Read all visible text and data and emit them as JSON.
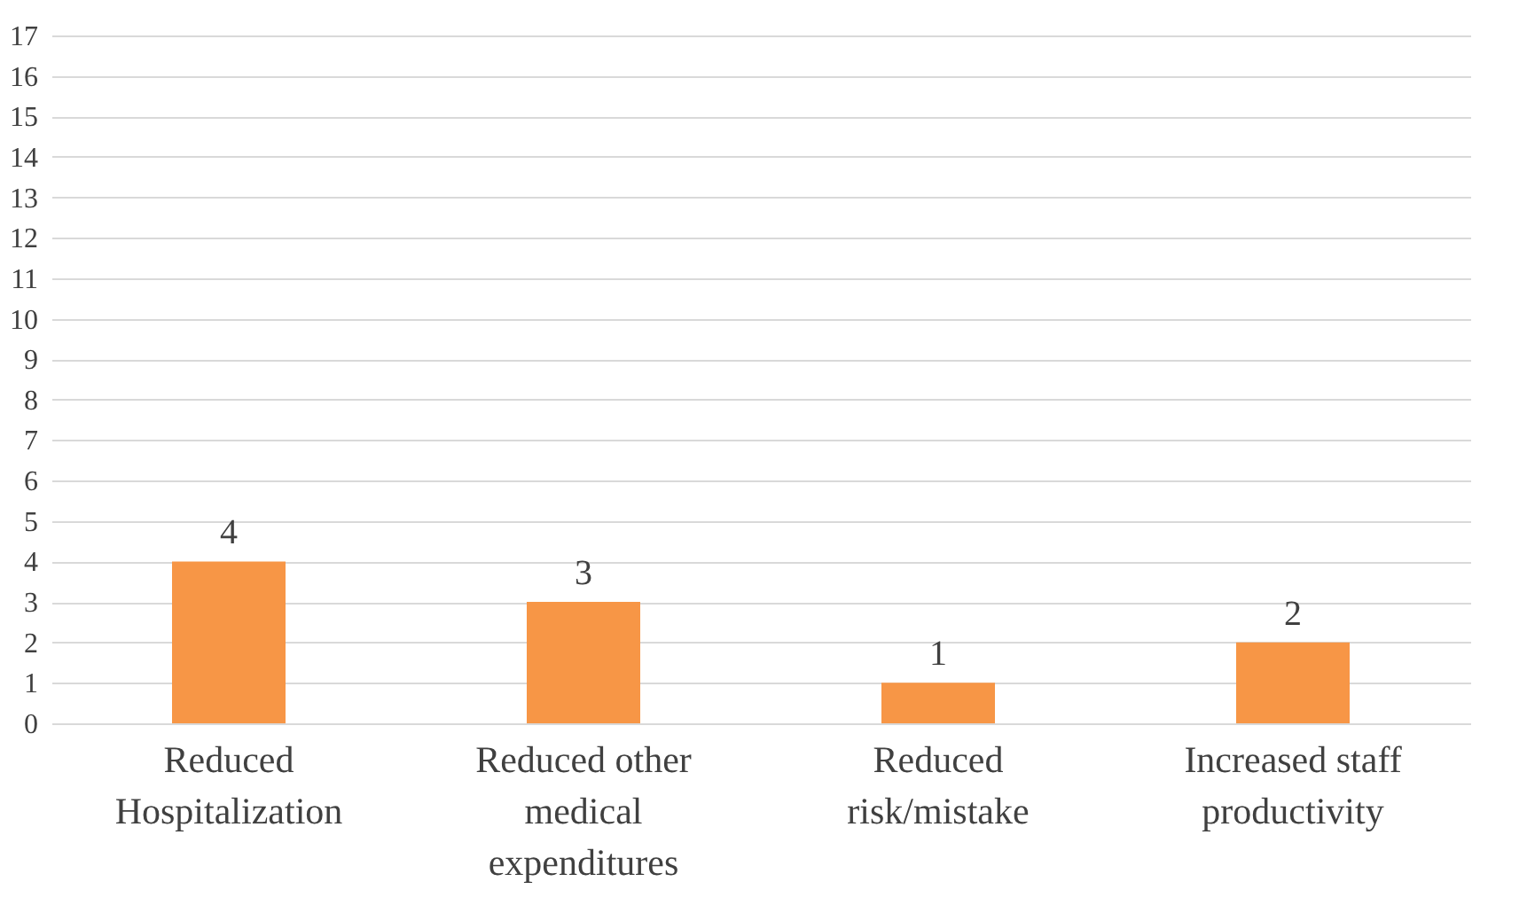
{
  "chart_data": {
    "type": "bar",
    "categories": [
      "Reduced Hospitalization",
      "Reduced other medical expenditures",
      "Reduced risk/mistake",
      "Increased staff productivity"
    ],
    "values": [
      4,
      3,
      1,
      2
    ],
    "color": "#f79646",
    "ylim": [
      0,
      17
    ],
    "yticks": [
      0,
      1,
      2,
      3,
      4,
      5,
      6,
      7,
      8,
      9,
      10,
      11,
      12,
      13,
      14,
      15,
      16,
      17
    ],
    "grid": "y",
    "data_labels": true
  }
}
